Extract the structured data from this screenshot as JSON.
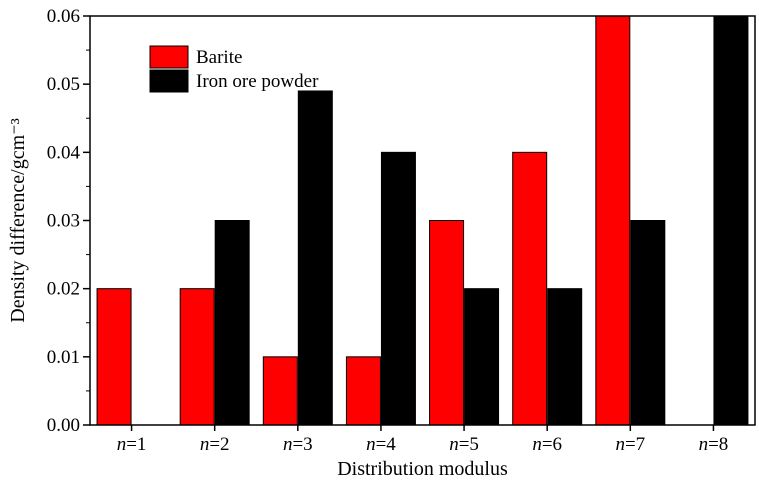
{
  "chart_data": {
    "type": "bar",
    "categories": [
      "n=1",
      "n=2",
      "n=3",
      "n=4",
      "n=5",
      "n=6",
      "n=7",
      "n=8"
    ],
    "series": [
      {
        "name": "Barite",
        "color": "#ff0000",
        "values": [
          0.02,
          0.02,
          0.01,
          0.01,
          0.03,
          0.04,
          0.06,
          0
        ]
      },
      {
        "name": "Iron ore powder",
        "color": "#000000",
        "values": [
          0,
          0.03,
          0.049,
          0.04,
          0.02,
          0.02,
          0.03,
          0.06
        ]
      }
    ],
    "xlabel": "Distribution modulus",
    "ylabel": "Density difference/gcm⁻³",
    "ylim": [
      0,
      0.06
    ],
    "yticks": [
      "0.00",
      "0.01",
      "0.02",
      "0.03",
      "0.04",
      "0.05",
      "0.06"
    ],
    "legend_position": "top-left",
    "grid": false
  }
}
